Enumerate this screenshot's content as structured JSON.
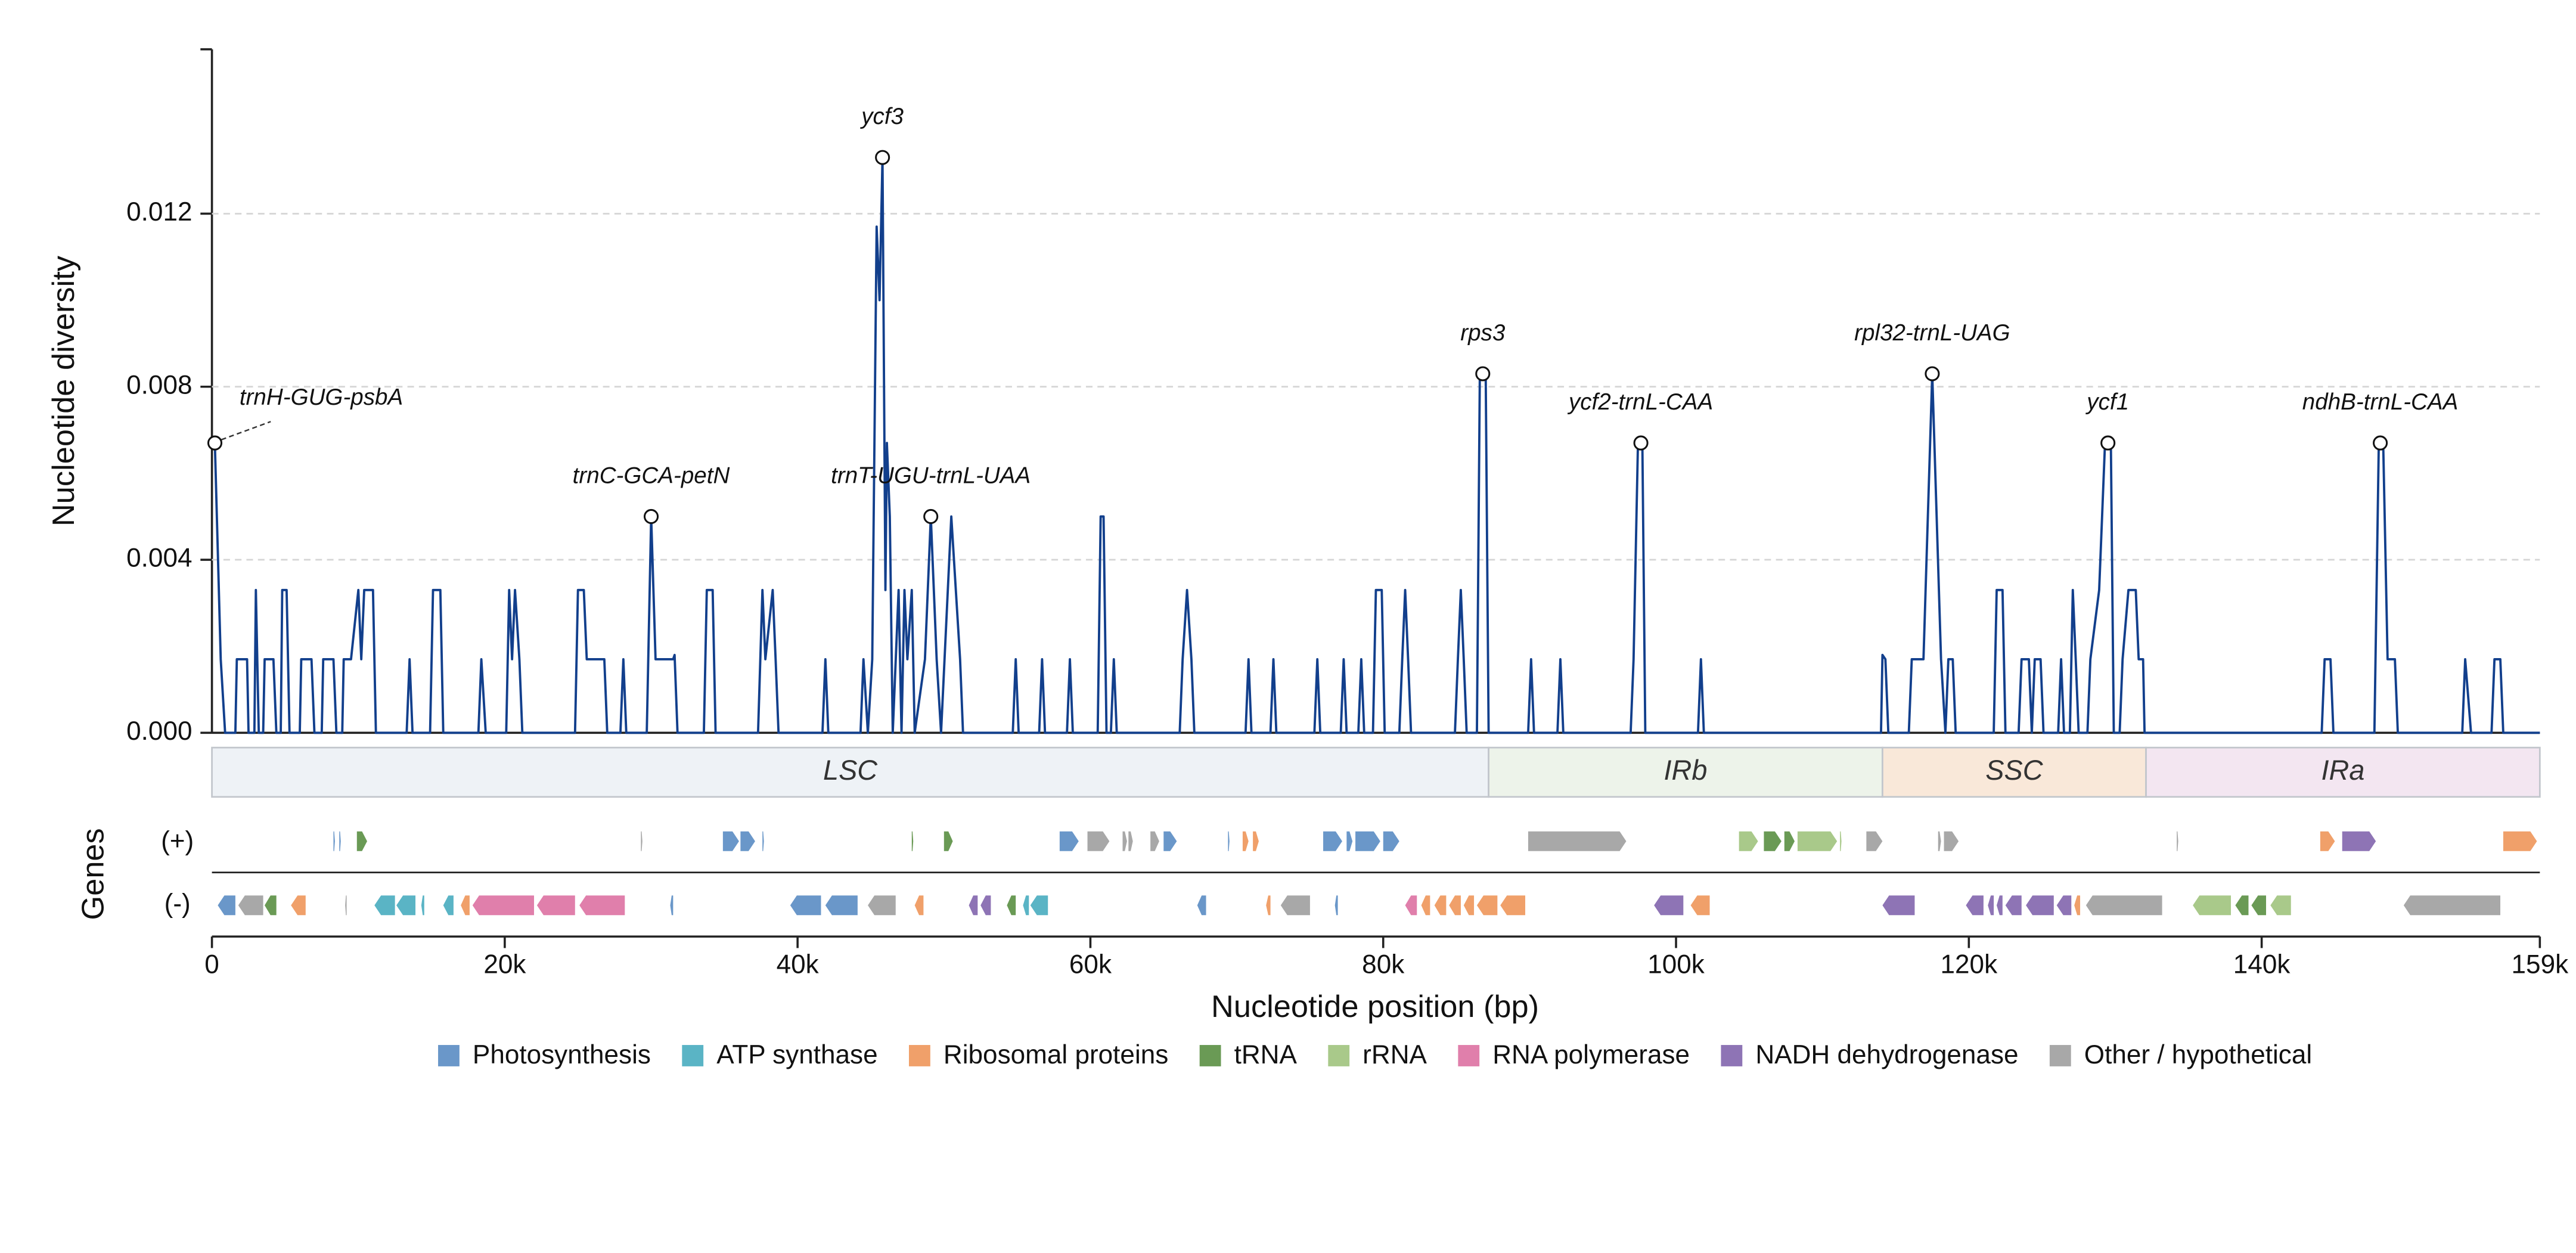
{
  "chart_data": {
    "type": "line",
    "xlabel": "Nucleotide position (bp)",
    "ylabel": "Nucleotide diversity",
    "track_label": "Genes",
    "strand_labels": [
      "(+)",
      "(-)"
    ],
    "xlim": [
      0,
      159000
    ],
    "ylim": [
      0,
      0.0158
    ],
    "xticks": [
      {
        "value": 0,
        "label": "0"
      },
      {
        "value": 20000,
        "label": "20k"
      },
      {
        "value": 40000,
        "label": "40k"
      },
      {
        "value": 60000,
        "label": "60k"
      },
      {
        "value": 80000,
        "label": "80k"
      },
      {
        "value": 100000,
        "label": "100k"
      },
      {
        "value": 120000,
        "label": "120k"
      },
      {
        "value": 140000,
        "label": "140k"
      },
      {
        "value": 159000,
        "label": "159k"
      }
    ],
    "yticks": [
      {
        "value": 0,
        "label": "0.000"
      },
      0.004,
      0.008,
      0.012
    ],
    "grid": true,
    "color": "#123f8c",
    "x": [
      200,
      600,
      900,
      1600,
      1700,
      2400,
      2500,
      2900,
      3000,
      3200,
      3500,
      3600,
      4200,
      4400,
      4700,
      4800,
      5100,
      5300,
      6000,
      6100,
      6800,
      7000,
      7500,
      7600,
      8300,
      8500,
      8900,
      9000,
      9500,
      10000,
      10200,
      10400,
      11000,
      11200,
      13300,
      13500,
      13700,
      14900,
      15100,
      15600,
      15800,
      18200,
      18400,
      18700,
      20100,
      20300,
      20500,
      20700,
      21000,
      21200,
      24800,
      25000,
      25400,
      25600,
      26800,
      27000,
      27900,
      28100,
      28300,
      29700,
      30000,
      30300,
      31500,
      31600,
      31800,
      33600,
      33800,
      34200,
      34400,
      37300,
      37600,
      37800,
      38300,
      38500,
      38700,
      41700,
      41900,
      42100,
      44300,
      44500,
      44800,
      45100,
      45400,
      45600,
      45800,
      46000,
      46100,
      46300,
      46500,
      46900,
      47100,
      47300,
      47500,
      47800,
      48000,
      48700,
      49100,
      49500,
      49800,
      50500,
      51100,
      51300,
      54700,
      54900,
      55100,
      56500,
      56700,
      56900,
      58400,
      58600,
      58800,
      60500,
      60700,
      60900,
      61100,
      61400,
      61600,
      61800,
      66100,
      66300,
      66600,
      66900,
      67100,
      70600,
      70800,
      71000,
      72300,
      72500,
      72700,
      75300,
      75500,
      75700,
      77100,
      77300,
      77500,
      78300,
      78500,
      78700,
      79300,
      79500,
      79900,
      80100,
      81100,
      81300,
      81500,
      81700,
      81900,
      84900,
      85100,
      85300,
      85500,
      85700,
      86400,
      86600,
      87000,
      87200,
      89900,
      90100,
      90300,
      91900,
      92100,
      92300,
      96900,
      97100,
      97400,
      97700,
      97900,
      101500,
      101700,
      101900,
      114000,
      114100,
      114300,
      114500,
      115900,
      116100,
      116900,
      117200,
      117500,
      117800,
      118100,
      118400,
      118600,
      118900,
      119100,
      121700,
      121900,
      122300,
      122500,
      123400,
      123600,
      124100,
      124300,
      124500,
      124900,
      125100,
      126100,
      126300,
      126500,
      126900,
      127100,
      127300,
      127500,
      128100,
      128300,
      128900,
      129300,
      129700,
      129900,
      130300,
      130500,
      130900,
      131400,
      131600,
      131900,
      132000,
      144100,
      144300,
      144700,
      144900,
      147700,
      148000,
      148300,
      148600,
      149100,
      149300,
      153700,
      153900,
      154300,
      155700,
      155900,
      156300,
      156500,
      159000
    ],
    "values": [
      0.0067,
      0.0017,
      0,
      0,
      0.0017,
      0.0017,
      0,
      0,
      0.0033,
      0,
      0,
      0.0017,
      0.0017,
      0,
      0,
      0.0033,
      0.0033,
      0,
      0,
      0.0017,
      0.0017,
      0,
      0,
      0.0017,
      0.0017,
      0,
      0,
      0.0017,
      0.0017,
      0.0033,
      0.0017,
      0.0033,
      0.0033,
      0,
      0,
      0.0017,
      0,
      0,
      0.0033,
      0.0033,
      0,
      0,
      0.0017,
      0,
      0,
      0.0033,
      0.0017,
      0.0033,
      0.0017,
      0,
      0,
      0.0033,
      0.0033,
      0.0017,
      0.0017,
      0,
      0,
      0.0017,
      0,
      0,
      0.005,
      0.0017,
      0.0017,
      0.0018,
      0,
      0,
      0.0033,
      0.0033,
      0,
      0,
      0.0033,
      0.0017,
      0.0033,
      0.0017,
      0,
      0,
      0.0017,
      0,
      0,
      0.0017,
      0,
      0.0017,
      0.0117,
      0.01,
      0.0133,
      0.0033,
      0.0067,
      0.005,
      0,
      0.0033,
      0,
      0.0033,
      0.0017,
      0.0033,
      0,
      0.0017,
      0.005,
      0.0017,
      0,
      0.005,
      0.0017,
      0,
      0,
      0.0017,
      0,
      0,
      0.0017,
      0,
      0,
      0.0017,
      0,
      0,
      0.005,
      0.005,
      0,
      0,
      0.0017,
      0,
      0,
      0.0017,
      0.0033,
      0.0017,
      0,
      0,
      0.0017,
      0,
      0,
      0.0017,
      0,
      0,
      0.0017,
      0,
      0,
      0.0017,
      0,
      0,
      0.0017,
      0,
      0,
      0.0033,
      0.0033,
      0,
      0,
      0.0017,
      0.0033,
      0.0017,
      0,
      0,
      0.0017,
      0.0033,
      0.0017,
      0,
      0,
      0.0083,
      0.0083,
      0,
      0,
      0.0017,
      0,
      0,
      0.0017,
      0,
      0,
      0.0017,
      0.0067,
      0.0067,
      0,
      0,
      0.0017,
      0,
      0,
      0.0018,
      0.0017,
      0,
      0,
      0.0017,
      0.0017,
      0.005,
      0.0083,
      0.005,
      0.0017,
      0,
      0.0017,
      0.0017,
      0,
      0,
      0.0033,
      0.0033,
      0,
      0,
      0.0017,
      0.0017,
      0,
      0.0017,
      0.0017,
      0,
      0,
      0.0017,
      0,
      0,
      0.0033,
      0.0017,
      0,
      0,
      0.0017,
      0.0033,
      0.0067,
      0.0067,
      0,
      0,
      0.0017,
      0.0033,
      0.0033,
      0.0017,
      0.0017,
      0,
      0,
      0.0017,
      0.0017,
      0,
      0,
      0.0067,
      0.0067,
      0.0017,
      0.0017,
      0,
      0,
      0.0017,
      0,
      0,
      0.0017,
      0.0017,
      0,
      0
    ],
    "annotations": [
      {
        "text": "trnH-GUG-psbA",
        "x": 200,
        "y": 0.0067
      },
      {
        "text": "trnC-GCA-petN",
        "x": 30000,
        "y": 0.005
      },
      {
        "text": "ycf3",
        "x": 45800,
        "y": 0.0133
      },
      {
        "text": "trnT-UGU-trnL-UAA",
        "x": 49100,
        "y": 0.005
      },
      {
        "text": "rps3",
        "x": 86800,
        "y": 0.0083
      },
      {
        "text": "ycf2-trnL-CAA",
        "x": 97600,
        "y": 0.0067
      },
      {
        "text": "rpl32-trnL-UAG",
        "x": 117500,
        "y": 0.0083
      },
      {
        "text": "ycf1",
        "x": 129500,
        "y": 0.0067
      },
      {
        "text": "ndhB-trnL-CAA",
        "x": 148100,
        "y": 0.0067
      }
    ],
    "regions": [
      {
        "name": "LSC",
        "start": 0,
        "end": 87200,
        "color": "#eef2f6"
      },
      {
        "name": "IRb",
        "start": 87200,
        "end": 114100,
        "color": "#edf3ea"
      },
      {
        "name": "SSC",
        "start": 114100,
        "end": 132100,
        "color": "#f9e8d9"
      },
      {
        "name": "IRa",
        "start": 132100,
        "end": 159000,
        "color": "#f3e6f1"
      }
    ],
    "gene_categories": [
      {
        "name": "Photosynthesis",
        "color": "#6a97c9"
      },
      {
        "name": "ATP synthase",
        "color": "#5ab4c5"
      },
      {
        "name": "Ribosomal proteins",
        "color": "#f0a06a"
      },
      {
        "name": "tRNA",
        "color": "#6a9a55"
      },
      {
        "name": "rRNA",
        "color": "#a9c98a"
      },
      {
        "name": "RNA polymerase",
        "color": "#e07fab"
      },
      {
        "name": "NADH dehydrogenase",
        "color": "#8e74b5"
      },
      {
        "name": "Other / hypothetical",
        "color": "#a8a8a8"
      }
    ],
    "genes_plus": [
      [
        8300,
        8400,
        0
      ],
      [
        8700,
        8800,
        0
      ],
      [
        9900,
        10600,
        3
      ],
      [
        29300,
        29400,
        7
      ],
      [
        34900,
        36000,
        0
      ],
      [
        36100,
        37100,
        0
      ],
      [
        37600,
        37700,
        0
      ],
      [
        47800,
        47900,
        3
      ],
      [
        50000,
        50600,
        3
      ],
      [
        57900,
        59200,
        0
      ],
      [
        59800,
        61300,
        7
      ],
      [
        62200,
        62500,
        7
      ],
      [
        62600,
        62900,
        7
      ],
      [
        64100,
        64700,
        7
      ],
      [
        65000,
        65900,
        0
      ],
      [
        69400,
        69500,
        0
      ],
      [
        70400,
        70800,
        2
      ],
      [
        71100,
        71500,
        2
      ],
      [
        75900,
        77200,
        0
      ],
      [
        77500,
        77900,
        0
      ],
      [
        78100,
        79800,
        0
      ],
      [
        80000,
        81100,
        0
      ],
      [
        89900,
        96600,
        7
      ],
      [
        104300,
        105600,
        4
      ],
      [
        106000,
        107200,
        3
      ],
      [
        107400,
        108100,
        3
      ],
      [
        108300,
        111000,
        4
      ],
      [
        111200,
        111300,
        4
      ],
      [
        113000,
        114100,
        7
      ],
      [
        117900,
        118100,
        7
      ],
      [
        118300,
        119300,
        7
      ],
      [
        134200,
        134300,
        7
      ],
      [
        144000,
        145000,
        2
      ],
      [
        145500,
        147800,
        6
      ],
      [
        156500,
        158800,
        2
      ]
    ],
    "genes_minus": [
      [
        400,
        1600,
        0
      ],
      [
        1800,
        3500,
        7
      ],
      [
        3600,
        4400,
        3
      ],
      [
        5400,
        6400,
        2
      ],
      [
        9100,
        9200,
        7
      ],
      [
        11100,
        12500,
        1
      ],
      [
        12600,
        13900,
        1
      ],
      [
        14300,
        14500,
        1
      ],
      [
        15800,
        16500,
        1
      ],
      [
        17000,
        17600,
        2
      ],
      [
        17800,
        22000,
        5
      ],
      [
        22200,
        24800,
        5
      ],
      [
        25100,
        28200,
        5
      ],
      [
        31300,
        31500,
        0
      ],
      [
        39500,
        41600,
        0
      ],
      [
        41900,
        44100,
        0
      ],
      [
        44800,
        46700,
        7
      ],
      [
        48000,
        48600,
        2
      ],
      [
        51700,
        52300,
        6
      ],
      [
        52500,
        53200,
        6
      ],
      [
        54300,
        54900,
        3
      ],
      [
        55400,
        55800,
        1
      ],
      [
        55900,
        57100,
        1
      ],
      [
        67300,
        67900,
        0
      ],
      [
        72000,
        72300,
        2
      ],
      [
        73000,
        75000,
        7
      ],
      [
        76700,
        76900,
        0
      ],
      [
        81500,
        82300,
        5
      ],
      [
        82600,
        83200,
        2
      ],
      [
        83500,
        84300,
        2
      ],
      [
        84500,
        85300,
        2
      ],
      [
        85500,
        86200,
        2
      ],
      [
        86400,
        87800,
        2
      ],
      [
        88000,
        89700,
        2
      ],
      [
        98500,
        100500,
        6
      ],
      [
        101000,
        102300,
        2
      ],
      [
        114100,
        116300,
        6
      ],
      [
        119800,
        121000,
        6
      ],
      [
        121300,
        121700,
        6
      ],
      [
        121900,
        122300,
        6
      ],
      [
        122500,
        123600,
        6
      ],
      [
        123900,
        125800,
        6
      ],
      [
        126000,
        127000,
        6
      ],
      [
        127200,
        127600,
        2
      ],
      [
        128000,
        133200,
        7
      ],
      [
        135300,
        137900,
        4
      ],
      [
        138200,
        139100,
        3
      ],
      [
        139300,
        140300,
        3
      ],
      [
        140600,
        142000,
        4
      ],
      [
        149700,
        156300,
        7
      ]
    ]
  }
}
